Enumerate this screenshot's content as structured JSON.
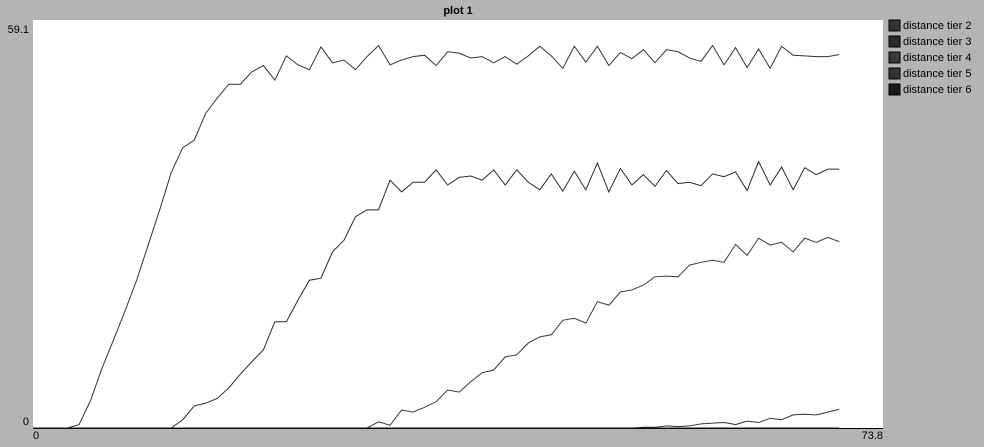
{
  "chart_data": {
    "type": "line",
    "title": "plot 1",
    "x": [
      0,
      1,
      2,
      3,
      4,
      5,
      6,
      7,
      8,
      9,
      10,
      11,
      12,
      13,
      14,
      15,
      16,
      17,
      18,
      19,
      20,
      21,
      22,
      23,
      24,
      25,
      26,
      27,
      28,
      29,
      30,
      31,
      32,
      33,
      34,
      35,
      36,
      37,
      38,
      39,
      40,
      41,
      42,
      43,
      44,
      45,
      46,
      47,
      48,
      49,
      50,
      51,
      52,
      53,
      54,
      55,
      56,
      57,
      58,
      59,
      60,
      61,
      62,
      63,
      64,
      65,
      66,
      67,
      68,
      69,
      70
    ],
    "series": [
      {
        "name": "distance tier 2",
        "color": "#333333",
        "values": [
          0,
          0,
          0,
          0,
          0.5,
          4,
          8.7,
          12.8,
          17,
          21.4,
          26.5,
          31.6,
          37,
          40.6,
          41.7,
          45.6,
          47.8,
          49.8,
          49.8,
          51.6,
          52.5,
          50.4,
          53.9,
          52.6,
          51.9,
          55.2,
          52.9,
          53.3,
          51.9,
          53.8,
          55.4,
          52.6,
          53.3,
          53.8,
          54,
          52.5,
          54.5,
          54.3,
          53.6,
          53.8,
          52.9,
          53.8,
          52.7,
          53.9,
          55.3,
          53.9,
          52.1,
          55.3,
          53,
          55.3,
          52.5,
          54.4,
          53.5,
          54.8,
          52.9,
          54.8,
          54.5,
          53.6,
          53.1,
          55.4,
          52.6,
          55.1,
          52.2,
          54.9,
          52.1,
          55.3,
          54,
          53.9,
          53.8,
          53.8,
          54.1
        ]
      },
      {
        "name": "distance tier 3",
        "color": "#2b2b2b",
        "values": [
          0,
          0,
          0,
          0,
          0,
          0,
          0,
          0,
          0,
          0,
          0,
          0,
          0,
          1.2,
          3.2,
          3.6,
          4.3,
          5.8,
          7.8,
          9.6,
          11.3,
          15.4,
          15.4,
          18.5,
          21.4,
          21.7,
          25.5,
          27.2,
          30.6,
          31.6,
          31.6,
          35.9,
          34.2,
          35.6,
          35.6,
          37.4,
          35.2,
          36.3,
          36.5,
          35.9,
          37.4,
          35.2,
          37.4,
          35.6,
          34.5,
          36.8,
          34.3,
          37.2,
          34.5,
          38.4,
          34.2,
          37.6,
          35.2,
          36.7,
          35,
          37.3,
          35.4,
          35.6,
          35.1,
          36.8,
          36.4,
          37.1,
          34.4,
          38.6,
          35.2,
          37.8,
          34.5,
          37.7,
          36.7,
          37.5,
          37.5
        ]
      },
      {
        "name": "distance tier 4",
        "color": "#3a3a3a",
        "values": [
          0,
          0,
          0,
          0,
          0,
          0,
          0,
          0,
          0,
          0,
          0,
          0,
          0,
          0,
          0,
          0,
          0,
          0,
          0,
          0,
          0,
          0,
          0,
          0,
          0,
          0,
          0,
          0,
          0,
          0,
          0.9,
          0.4,
          2.6,
          2.3,
          3,
          3.8,
          5.5,
          5.2,
          6.7,
          8,
          8.4,
          10.3,
          10.6,
          12.3,
          13.2,
          13.5,
          15.6,
          15.9,
          15.2,
          18.3,
          17.8,
          19.7,
          20,
          20.7,
          21.9,
          22,
          21.9,
          23.6,
          24,
          24.3,
          24,
          26.6,
          25,
          27.5,
          26.5,
          26.9,
          25.5,
          27.5,
          26.9,
          27.6,
          27
        ]
      },
      {
        "name": "distance tier 5",
        "color": "#333333",
        "values": [
          0,
          0,
          0,
          0,
          0,
          0,
          0,
          0,
          0,
          0,
          0,
          0,
          0,
          0,
          0,
          0,
          0,
          0,
          0,
          0,
          0,
          0,
          0,
          0,
          0,
          0,
          0,
          0,
          0,
          0,
          0,
          0,
          0,
          0,
          0,
          0,
          0,
          0,
          0,
          0,
          0,
          0,
          0,
          0,
          0,
          0,
          0,
          0,
          0,
          0,
          0,
          0,
          0,
          0.1,
          0.1,
          0.3,
          0.2,
          0.3,
          0.6,
          0.7,
          0.8,
          0.5,
          1,
          0.8,
          1.4,
          1.2,
          1.9,
          2,
          1.9,
          2.3,
          2.7
        ]
      },
      {
        "name": "distance tier 6",
        "color": "#1a1a1a",
        "values": [
          0,
          0,
          0,
          0,
          0,
          0,
          0,
          0,
          0,
          0,
          0,
          0,
          0,
          0,
          0,
          0,
          0,
          0,
          0,
          0,
          0,
          0,
          0,
          0,
          0,
          0,
          0,
          0,
          0,
          0,
          0,
          0,
          0,
          0,
          0,
          0,
          0,
          0,
          0,
          0,
          0,
          0,
          0,
          0,
          0,
          0,
          0,
          0,
          0,
          0,
          0,
          0,
          0,
          0,
          0,
          0,
          0,
          0,
          0,
          0,
          0,
          0,
          0,
          0,
          0,
          0,
          0,
          0,
          0,
          0,
          0
        ]
      }
    ],
    "xlim": [
      0,
      73.8
    ],
    "ylim": [
      0,
      59.1
    ],
    "xticks": [
      0,
      73.8
    ],
    "yticks": [
      0,
      59.1
    ],
    "legend": "right"
  }
}
